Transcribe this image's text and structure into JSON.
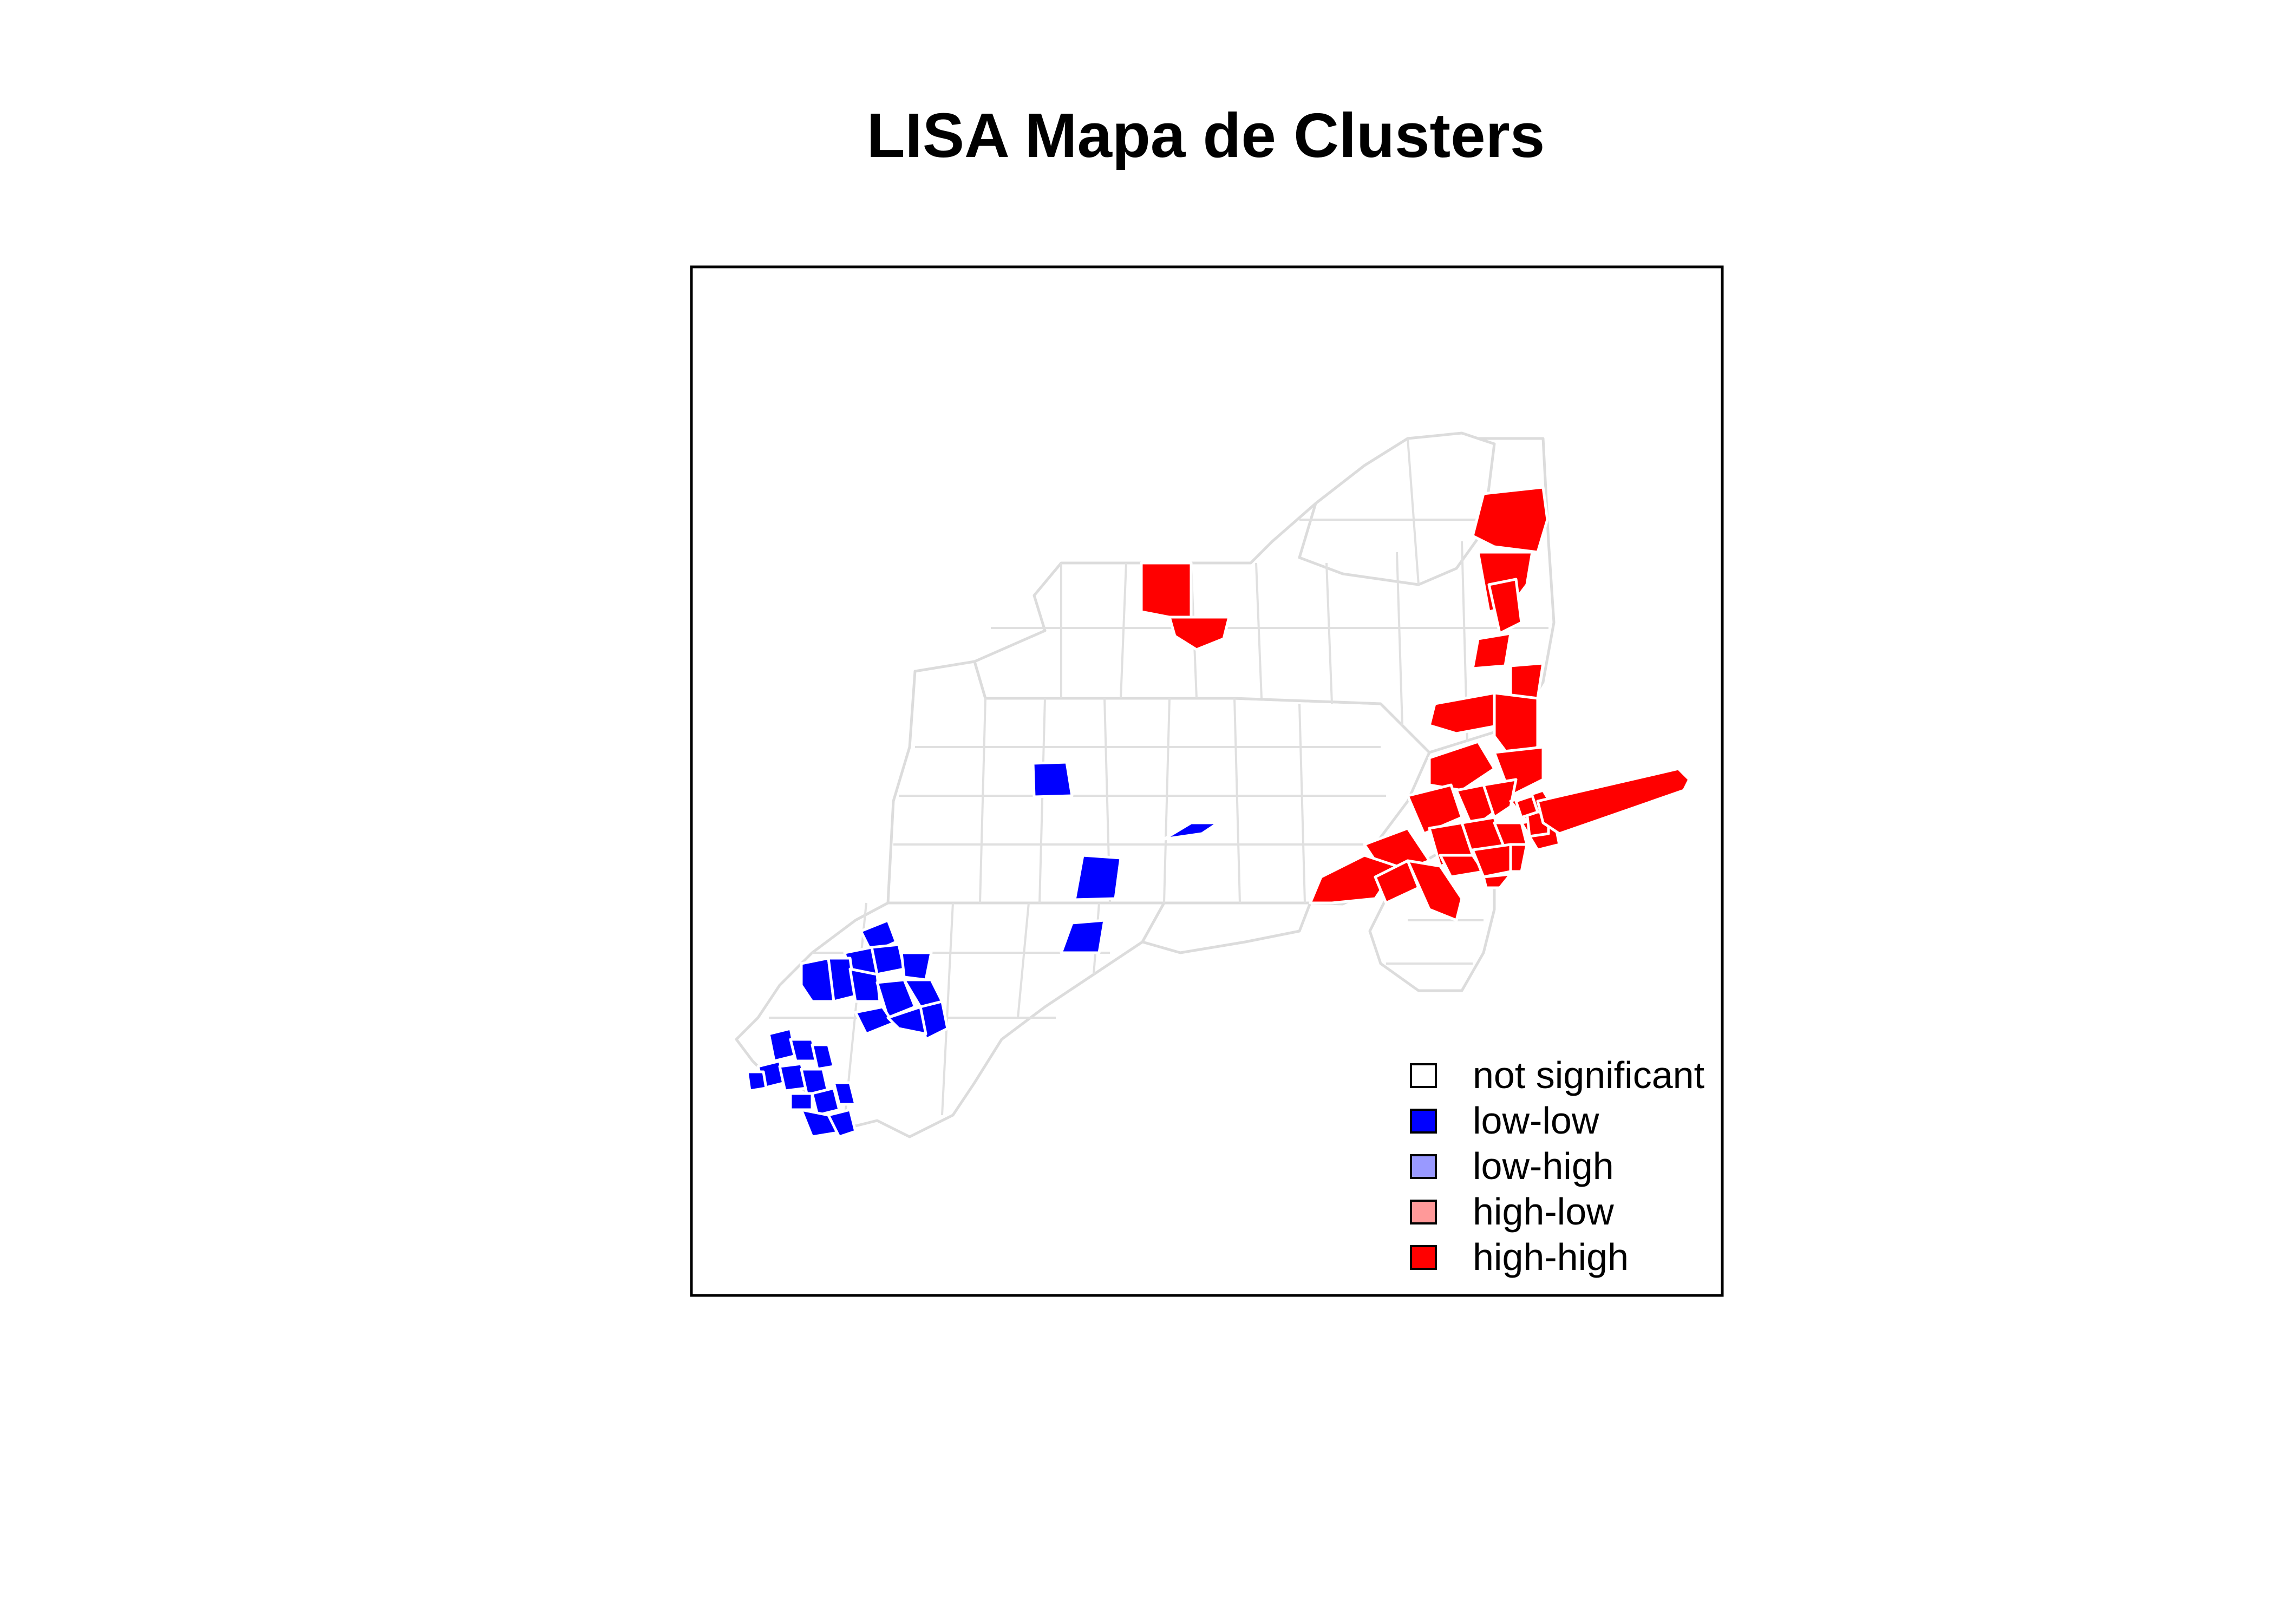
{
  "title": "LISA Mapa de Clusters",
  "colors": {
    "not_significant": "#ffffff",
    "low_low": "#0000ff",
    "low_high": "#9999ff",
    "high_low": "#ff9999",
    "high_high": "#ff0000",
    "border": "#dcdcdc",
    "frame": "#000000"
  },
  "legend": {
    "placement": "bottom-right",
    "items": [
      {
        "label": "not significant",
        "color": "#ffffff"
      },
      {
        "label": "low-low",
        "color": "#0000ff"
      },
      {
        "label": "low-high",
        "color": "#9999ff"
      },
      {
        "label": "high-low",
        "color": "#ff9999"
      },
      {
        "label": "high-high",
        "color": "#ff0000"
      }
    ]
  },
  "map": {
    "cluster_categories": [
      "not significant",
      "low-low",
      "low-high",
      "high-low",
      "high-high"
    ],
    "regions_shown": [
      {
        "cluster": "low-low",
        "count": 28
      },
      {
        "cluster": "high-high",
        "count": 30
      }
    ]
  }
}
